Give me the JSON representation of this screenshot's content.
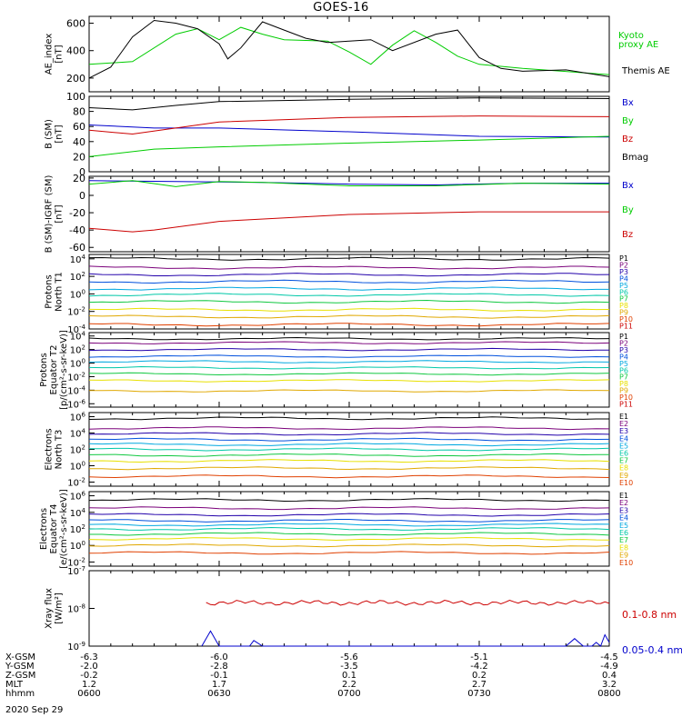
{
  "title": "GOES-16",
  "colors": {
    "black": "#000000",
    "green": "#00cc00",
    "blue": "#0000cc",
    "red": "#cc0000",
    "P": [
      "#000000",
      "#7a007a",
      "#2200aa",
      "#0050dd",
      "#00a8e0",
      "#00c8a8",
      "#10c840",
      "#e8e000",
      "#e0a800",
      "#e04000",
      "#cc0000"
    ],
    "E": [
      "#000000",
      "#7a007a",
      "#2200aa",
      "#0050dd",
      "#00a8e0",
      "#00c8a8",
      "#10c840",
      "#e8e000",
      "#e0a800",
      "#e04000",
      "#cc0000"
    ]
  },
  "panels": {
    "ae": {
      "ylabel": "AE_index\n[nT]",
      "yticks": [
        "600",
        "400",
        "200"
      ],
      "legend": [
        "Kyoto",
        "proxy AE",
        "Themis AE"
      ]
    },
    "b": {
      "ylabel": "B (SM)\n[nT]",
      "yticks": [
        "100",
        "80",
        "60",
        "40",
        "20",
        "0"
      ],
      "legend": [
        "Bx",
        "By",
        "Bz",
        "Bmag"
      ]
    },
    "bigrf": {
      "ylabel": "B (SM)-IGRF (SM)\n[nT]",
      "yticks": [
        "20",
        "0",
        "-20",
        "-40",
        "-60"
      ],
      "legend": [
        "Bx",
        "By",
        "Bz"
      ]
    },
    "p1": {
      "ylabel": "Protons\nNorth T1",
      "yticks": [
        "10^4",
        "10^2",
        "10^0",
        "10^-2",
        "10^-4"
      ],
      "legend": [
        "P1",
        "P2",
        "P3",
        "P4",
        "P5",
        "P6",
        "P7",
        "P8",
        "P9",
        "P10",
        "P11"
      ]
    },
    "p2": {
      "ylabel": "Protons\nEquator T2\n[p/(cm²-s-sr-keV)]",
      "yticks": [
        "10^4",
        "10^2",
        "10^0",
        "10^-2",
        "10^-4",
        "10^-6"
      ],
      "legend": [
        "P1",
        "P2",
        "P3",
        "P4",
        "P5",
        "P6",
        "P7",
        "P8",
        "P9",
        "P10",
        "P11"
      ]
    },
    "e1": {
      "ylabel": "Electrons\nNorth T3",
      "yticks": [
        "10^6",
        "10^4",
        "10^2",
        "10^0",
        "10^-2"
      ],
      "legend": [
        "E1",
        "E2",
        "E3",
        "E4",
        "E5",
        "E6",
        "E7",
        "E8",
        "E9",
        "E10"
      ]
    },
    "e2": {
      "ylabel": "Electrons\nEquator T4\n[e/(cm²-s-sr-keV)]",
      "yticks": [
        "10^6",
        "10^4",
        "10^2",
        "10^0",
        "10^-2"
      ],
      "legend": [
        "E1",
        "E2",
        "E3",
        "E4",
        "E5",
        "E6",
        "E7",
        "E8",
        "E9",
        "E10"
      ]
    },
    "xray": {
      "ylabel": "Xray flux\n[W/m²]",
      "yticks": [
        "10^-7",
        "10^-8",
        "10^-9"
      ],
      "legend": [
        "0.1-0.8 nm",
        "0.05-0.4 nm"
      ]
    }
  },
  "footer": {
    "rows": [
      {
        "label": "X-GSM",
        "values": [
          "-6.3",
          "-6.0",
          "-5.6",
          "-5.1",
          "-4.5"
        ]
      },
      {
        "label": "Y-GSM",
        "values": [
          "-2.0",
          "-2.8",
          "-3.5",
          "-4.2",
          "-4.9"
        ]
      },
      {
        "label": "Z-GSM",
        "values": [
          "-0.2",
          "-0.1",
          "0.1",
          "0.2",
          "0.4"
        ]
      },
      {
        "label": "MLT",
        "values": [
          "1.2",
          "1.7",
          "2.2",
          "2.7",
          "3.2"
        ]
      },
      {
        "label": "hhmm",
        "values": [
          "0600",
          "0630",
          "0700",
          "0730",
          "0800"
        ]
      }
    ],
    "date": "2020 Sep 29"
  },
  "chart_data": [
    {
      "type": "line",
      "panel": "ae",
      "ylim": [
        100,
        650
      ],
      "x": [
        "0600",
        "0630",
        "0700",
        "0730",
        "0800"
      ],
      "series": [
        {
          "name": "Kyoto proxy AE",
          "color": "green",
          "points": [
            [
              0,
              300
            ],
            [
              10,
              320
            ],
            [
              20,
              520
            ],
            [
              25,
              560
            ],
            [
              30,
              480
            ],
            [
              35,
              570
            ],
            [
              40,
              520
            ],
            [
              45,
              480
            ],
            [
              55,
              470
            ],
            [
              60,
              390
            ],
            [
              65,
              300
            ],
            [
              70,
              440
            ],
            [
              75,
              545
            ],
            [
              80,
              460
            ],
            [
              85,
              360
            ],
            [
              90,
              300
            ],
            [
              100,
              270
            ],
            [
              120,
              225
            ]
          ]
        },
        {
          "name": "Themis AE",
          "color": "black",
          "points": [
            [
              0,
              200
            ],
            [
              5,
              280
            ],
            [
              10,
              500
            ],
            [
              15,
              620
            ],
            [
              20,
              600
            ],
            [
              25,
              560
            ],
            [
              30,
              450
            ],
            [
              32,
              340
            ],
            [
              35,
              420
            ],
            [
              40,
              610
            ],
            [
              45,
              550
            ],
            [
              50,
              490
            ],
            [
              55,
              460
            ],
            [
              60,
              470
            ],
            [
              65,
              480
            ],
            [
              70,
              400
            ],
            [
              80,
              520
            ],
            [
              85,
              550
            ],
            [
              90,
              350
            ],
            [
              95,
              270
            ],
            [
              100,
              250
            ],
            [
              110,
              260
            ],
            [
              120,
              210
            ]
          ]
        }
      ]
    },
    {
      "type": "line",
      "panel": "b",
      "ylim": [
        0,
        100
      ],
      "x": [
        "0600",
        "0630",
        "0700",
        "0730",
        "0800"
      ],
      "series": [
        {
          "name": "Bx",
          "color": "blue",
          "points": [
            [
              0,
              62
            ],
            [
              15,
              58
            ],
            [
              30,
              58
            ],
            [
              60,
              53
            ],
            [
              90,
              47
            ],
            [
              120,
              46
            ]
          ]
        },
        {
          "name": "By",
          "color": "green",
          "points": [
            [
              0,
              20
            ],
            [
              15,
              30
            ],
            [
              30,
              33
            ],
            [
              60,
              38
            ],
            [
              90,
              42
            ],
            [
              120,
              47
            ]
          ]
        },
        {
          "name": "Bz",
          "color": "red",
          "points": [
            [
              0,
              55
            ],
            [
              10,
              50
            ],
            [
              20,
              58
            ],
            [
              30,
              66
            ],
            [
              60,
              72
            ],
            [
              90,
              74
            ],
            [
              120,
              73
            ]
          ]
        },
        {
          "name": "Bmag",
          "color": "black",
          "points": [
            [
              0,
              85
            ],
            [
              10,
              82
            ],
            [
              20,
              88
            ],
            [
              30,
              93
            ],
            [
              60,
              96
            ],
            [
              90,
              98
            ],
            [
              120,
              97
            ]
          ]
        }
      ]
    },
    {
      "type": "line",
      "panel": "bigrf",
      "ylim": [
        -65,
        22
      ],
      "x": [
        "0600",
        "0630",
        "0700",
        "0730",
        "0800"
      ],
      "series": [
        {
          "name": "Bx",
          "color": "blue",
          "points": [
            [
              0,
              17
            ],
            [
              20,
              16
            ],
            [
              40,
              15
            ],
            [
              60,
              13
            ],
            [
              80,
              12
            ],
            [
              100,
              14
            ],
            [
              120,
              14
            ]
          ]
        },
        {
          "name": "By",
          "color": "green",
          "points": [
            [
              0,
              13
            ],
            [
              10,
              17
            ],
            [
              20,
              10
            ],
            [
              30,
              16
            ],
            [
              40,
              15
            ],
            [
              60,
              11
            ],
            [
              80,
              11
            ],
            [
              100,
              14
            ],
            [
              120,
              13
            ]
          ]
        },
        {
          "name": "Bz",
          "color": "red",
          "points": [
            [
              0,
              -38
            ],
            [
              10,
              -42
            ],
            [
              15,
              -40
            ],
            [
              30,
              -30
            ],
            [
              60,
              -22
            ],
            [
              90,
              -19
            ],
            [
              120,
              -19
            ]
          ]
        }
      ]
    },
    {
      "type": "line",
      "panel": "p1",
      "ylog": true,
      "ylim": [
        -4,
        4.5
      ],
      "x": [
        "0600",
        "0630",
        "0700",
        "0730",
        "0800"
      ],
      "series": [
        {
          "name": "P1",
          "level": 4.0
        },
        {
          "name": "P2",
          "level": 3.0
        },
        {
          "name": "P3",
          "level": 2.2
        },
        {
          "name": "P4",
          "level": 1.4
        },
        {
          "name": "P5",
          "level": 0.6
        },
        {
          "name": "P6",
          "level": -0.1
        },
        {
          "name": "P7",
          "level": -0.9
        },
        {
          "name": "P8",
          "level": -1.8
        },
        {
          "name": "P9",
          "level": -2.6
        },
        {
          "name": "P10",
          "level": -3.5
        }
      ]
    },
    {
      "type": "line",
      "panel": "p2",
      "ylog": true,
      "ylim": [
        -6.5,
        4.5
      ],
      "x": [
        "0600",
        "0630",
        "0700",
        "0730",
        "0800"
      ],
      "series": [
        {
          "name": "P1",
          "level": 3.6
        },
        {
          "name": "P2",
          "level": 3.0
        },
        {
          "name": "P3",
          "level": 2.0
        },
        {
          "name": "P4",
          "level": 1.0
        },
        {
          "name": "P5",
          "level": 0.2
        },
        {
          "name": "P6",
          "level": -0.7
        },
        {
          "name": "P7",
          "level": -1.6
        },
        {
          "name": "P8",
          "level": -2.6
        },
        {
          "name": "P9",
          "level": -4.1
        }
      ]
    },
    {
      "type": "line",
      "panel": "e1",
      "ylog": true,
      "ylim": [
        -2.5,
        6.5
      ],
      "x": [
        "0600",
        "0630",
        "0700",
        "0730",
        "0800"
      ],
      "series": [
        {
          "name": "E1",
          "level": 5.8
        },
        {
          "name": "E2",
          "level": 4.6
        },
        {
          "name": "E3",
          "level": 3.9
        },
        {
          "name": "E4",
          "level": 3.2
        },
        {
          "name": "E5",
          "level": 2.6
        },
        {
          "name": "E6",
          "level": 2.0
        },
        {
          "name": "E7",
          "level": 1.3
        },
        {
          "name": "E8",
          "level": 0.6
        },
        {
          "name": "E9",
          "level": -0.3
        },
        {
          "name": "E10",
          "level": -1.3
        }
      ]
    },
    {
      "type": "line",
      "panel": "e2",
      "ylog": true,
      "ylim": [
        -2.5,
        6.5
      ],
      "x": [
        "0600",
        "0630",
        "0700",
        "0730",
        "0800"
      ],
      "series": [
        {
          "name": "E1",
          "level": 5.5
        },
        {
          "name": "E2",
          "level": 4.5
        },
        {
          "name": "E3",
          "level": 3.7
        },
        {
          "name": "E4",
          "level": 3.0
        },
        {
          "name": "E5",
          "level": 2.5
        },
        {
          "name": "E6",
          "level": 2.0
        },
        {
          "name": "E7",
          "level": 1.4
        },
        {
          "name": "E8",
          "level": 0.8
        },
        {
          "name": "E9",
          "level": 0.0
        },
        {
          "name": "E10",
          "level": -0.9
        }
      ]
    },
    {
      "type": "line",
      "panel": "xray",
      "ylog": true,
      "ylim": [
        -9,
        -7
      ],
      "x": [
        "0600",
        "0630",
        "0700",
        "0730",
        "0800"
      ],
      "series": [
        {
          "name": "0.1-0.8 nm",
          "color": "red",
          "points": [
            [
              27,
              -7.85
            ],
            [
              35,
              -7.82
            ],
            [
              45,
              -7.9
            ],
            [
              60,
              -7.85
            ],
            [
              75,
              -7.88
            ],
            [
              90,
              -7.85
            ],
            [
              105,
              -7.82
            ],
            [
              120,
              -7.8
            ]
          ]
        },
        {
          "name": "0.05-0.4 nm",
          "color": "blue",
          "points": [
            [
              26,
              -9
            ],
            [
              28,
              -8.6
            ],
            [
              30,
              -9
            ],
            [
              37,
              -9
            ],
            [
              38,
              -8.85
            ],
            [
              40,
              -9
            ],
            [
              110,
              -9
            ],
            [
              112,
              -8.8
            ],
            [
              114,
              -9
            ],
            [
              116,
              -9
            ],
            [
              117,
              -8.9
            ],
            [
              118,
              -9
            ],
            [
              119,
              -8.7
            ],
            [
              120,
              -8.9
            ]
          ]
        }
      ]
    }
  ]
}
